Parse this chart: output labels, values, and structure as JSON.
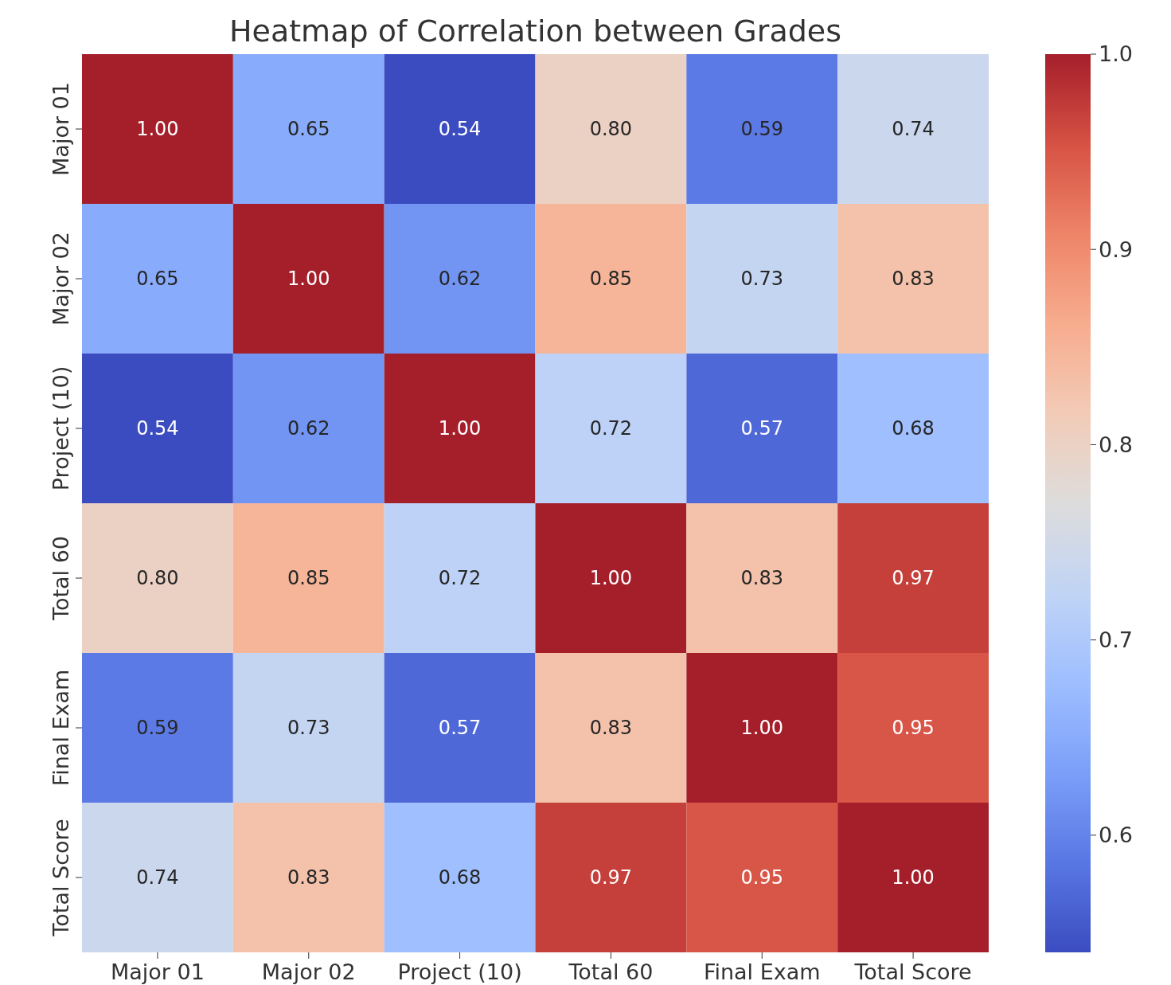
{
  "chart_data": {
    "type": "heatmap",
    "title": "Heatmap of Correlation between Grades",
    "categories": [
      "Major 01",
      "Major 02",
      "Project (10)",
      "Total 60",
      "Final Exam",
      "Total Score"
    ],
    "y_categories": [
      "Major 01",
      "Major 02",
      "Project (10)",
      "Total 60",
      "Final Exam",
      "Total Score"
    ],
    "cells": [
      [
        1.0,
        0.65,
        0.54,
        0.8,
        0.59,
        0.74
      ],
      [
        0.65,
        1.0,
        0.62,
        0.85,
        0.73,
        0.83
      ],
      [
        0.54,
        0.62,
        1.0,
        0.72,
        0.57,
        0.68
      ],
      [
        0.8,
        0.85,
        0.72,
        1.0,
        0.83,
        0.97
      ],
      [
        0.59,
        0.73,
        0.57,
        0.83,
        1.0,
        0.95
      ],
      [
        0.74,
        0.83,
        0.68,
        0.97,
        0.95,
        1.0
      ]
    ],
    "cell_labels": [
      [
        "1.00",
        "0.65",
        "0.54",
        "0.80",
        "0.59",
        "0.74"
      ],
      [
        "0.65",
        "1.00",
        "0.62",
        "0.85",
        "0.73",
        "0.83"
      ],
      [
        "0.54",
        "0.62",
        "1.00",
        "0.72",
        "0.57",
        "0.68"
      ],
      [
        "0.80",
        "0.85",
        "0.72",
        "1.00",
        "0.83",
        "0.97"
      ],
      [
        "0.59",
        "0.73",
        "0.57",
        "0.83",
        "1.00",
        "0.95"
      ],
      [
        "0.74",
        "0.83",
        "0.68",
        "0.97",
        "0.95",
        "1.00"
      ]
    ],
    "clim": [
      0.54,
      1.0
    ],
    "cticks": [
      0.6,
      0.7,
      0.8,
      0.9,
      {
        "value": 1.0,
        "label": "1.0"
      }
    ]
  }
}
